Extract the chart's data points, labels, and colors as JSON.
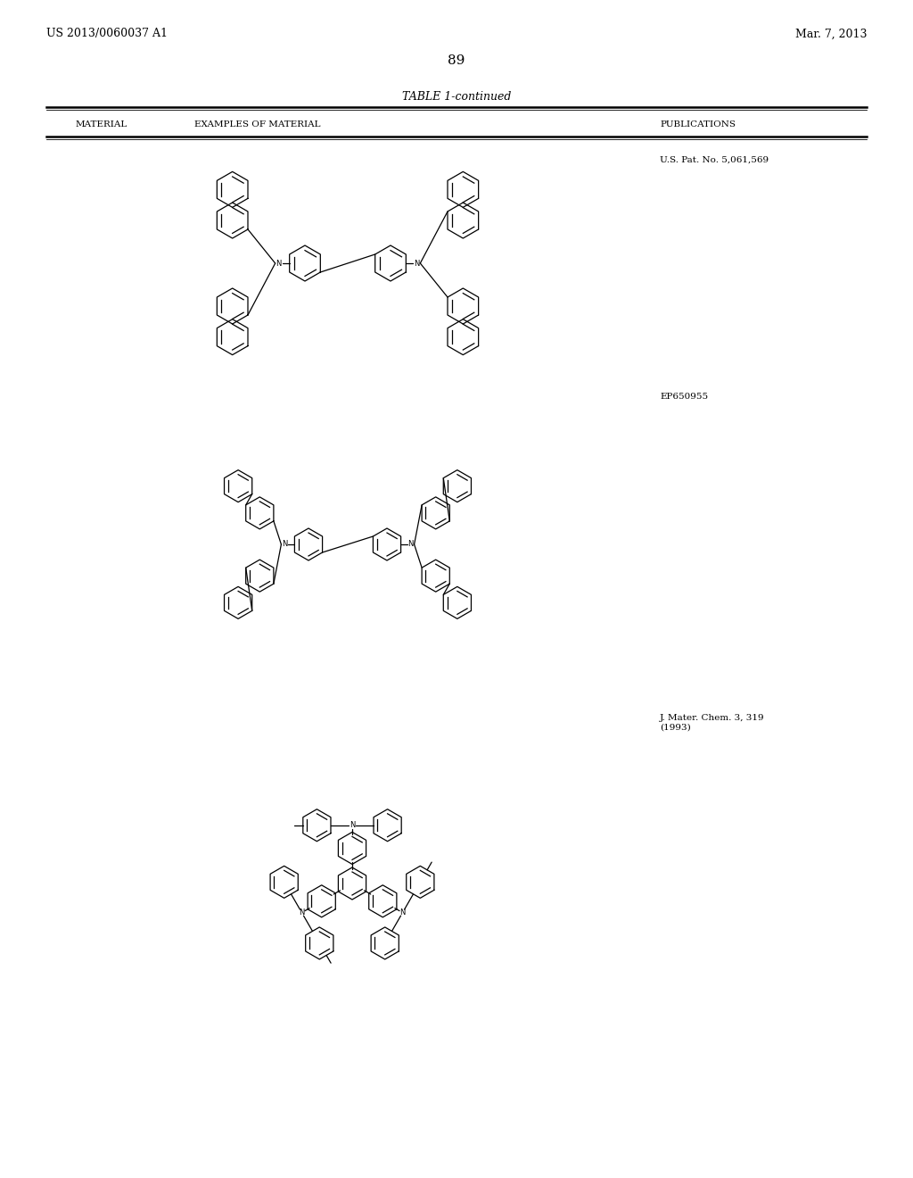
{
  "background_color": "#ffffff",
  "page_number": "89",
  "left_header": "US 2013/0060037 A1",
  "right_header": "Mar. 7, 2013",
  "table_title": "TABLE 1-continued",
  "col1": "MATERIAL",
  "col2": "EXAMPLES OF MATERIAL",
  "col3": "PUBLICATIONS",
  "pub1": "U.S. Pat. No. 5,061,569",
  "pub2": "EP650955",
  "pub3": "J. Mater. Chem. 3, 319\n(1993)",
  "figsize": [
    10.24,
    13.2
  ],
  "dpi": 100
}
